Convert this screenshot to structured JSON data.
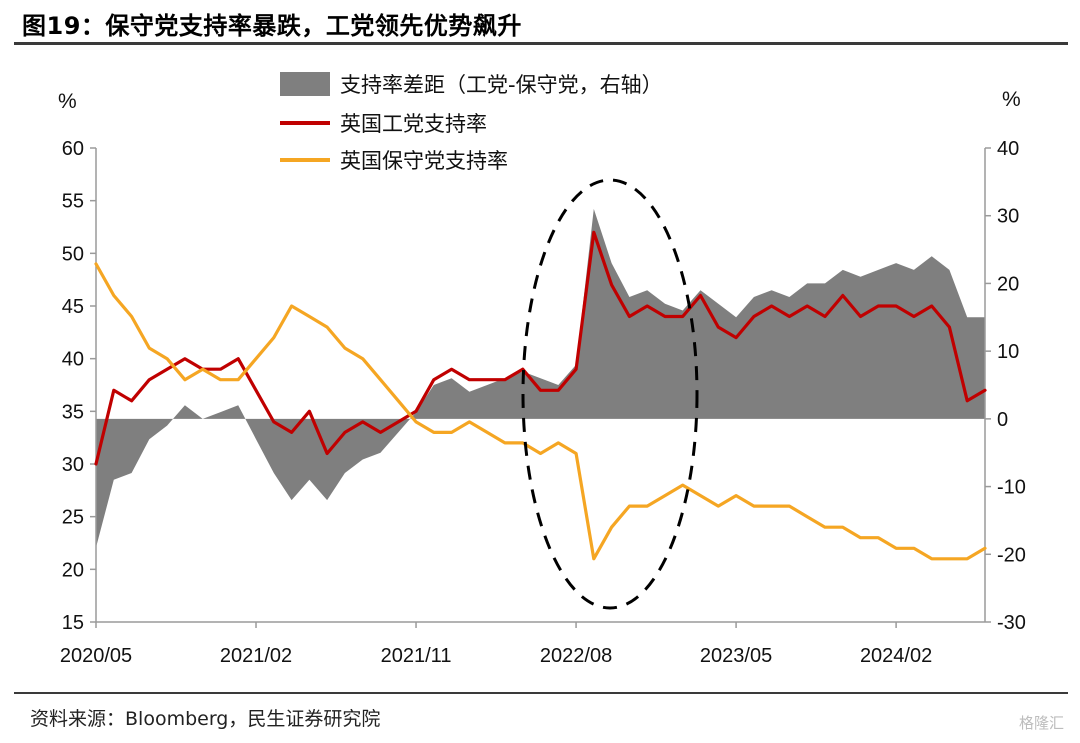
{
  "title": "图19：保守党支持率暴跌，工党领先优势飙升",
  "source": "资料来源：Bloomberg，民生证券研究院",
  "watermark": "格隆汇",
  "colors": {
    "labour": "#c00000",
    "conservative": "#f5a623",
    "gap": "#7f7f7f",
    "ellipse": "#000000"
  },
  "chart_data": {
    "type": "line",
    "left_unit": "%",
    "right_unit": "%",
    "left_axis": {
      "min": 15,
      "max": 60,
      "ticks": [
        15,
        20,
        25,
        30,
        35,
        40,
        45,
        50,
        55,
        60
      ]
    },
    "right_axis": {
      "min": -30,
      "max": 40,
      "ticks": [
        -30,
        -20,
        -10,
        0,
        10,
        20,
        30,
        40
      ]
    },
    "x_tick_labels": [
      "2020/05",
      "2021/02",
      "2021/11",
      "2022/08",
      "2023/05",
      "2024/02"
    ],
    "x_range": [
      "2020-05",
      "2024-07"
    ],
    "legend": [
      {
        "key": "gap",
        "label": "支持率差距（工党-保守党，右轴）"
      },
      {
        "key": "labour",
        "label": "英国工党支持率"
      },
      {
        "key": "conservative",
        "label": "英国保守党支持率"
      }
    ],
    "annotation": "dashed ellipse around 2022/08–2022/11",
    "series": [
      {
        "name": "英国工党支持率",
        "axis": "left",
        "x": [
          "2020-05",
          "2020-06",
          "2020-07",
          "2020-08",
          "2020-09",
          "2020-10",
          "2020-11",
          "2020-12",
          "2021-01",
          "2021-02",
          "2021-03",
          "2021-04",
          "2021-05",
          "2021-06",
          "2021-07",
          "2021-08",
          "2021-09",
          "2021-10",
          "2021-11",
          "2021-12",
          "2022-01",
          "2022-02",
          "2022-03",
          "2022-04",
          "2022-05",
          "2022-06",
          "2022-07",
          "2022-08",
          "2022-09",
          "2022-10",
          "2022-11",
          "2022-12",
          "2023-01",
          "2023-02",
          "2023-03",
          "2023-04",
          "2023-05",
          "2023-06",
          "2023-07",
          "2023-08",
          "2023-09",
          "2023-10",
          "2023-11",
          "2023-12",
          "2024-01",
          "2024-02",
          "2024-03",
          "2024-04",
          "2024-05",
          "2024-06",
          "2024-07"
        ],
        "values": [
          30,
          37,
          36,
          38,
          39,
          40,
          39,
          39,
          40,
          37,
          34,
          33,
          35,
          31,
          33,
          34,
          33,
          34,
          35,
          38,
          39,
          38,
          38,
          38,
          39,
          37,
          37,
          39,
          52,
          47,
          44,
          45,
          44,
          44,
          46,
          43,
          42,
          44,
          45,
          44,
          45,
          44,
          46,
          44,
          45,
          45,
          44,
          45,
          43,
          36,
          37
        ]
      },
      {
        "name": "英国保守党支持率",
        "axis": "left",
        "x": [
          "2020-05",
          "2020-06",
          "2020-07",
          "2020-08",
          "2020-09",
          "2020-10",
          "2020-11",
          "2020-12",
          "2021-01",
          "2021-02",
          "2021-03",
          "2021-04",
          "2021-05",
          "2021-06",
          "2021-07",
          "2021-08",
          "2021-09",
          "2021-10",
          "2021-11",
          "2021-12",
          "2022-01",
          "2022-02",
          "2022-03",
          "2022-04",
          "2022-05",
          "2022-06",
          "2022-07",
          "2022-08",
          "2022-09",
          "2022-10",
          "2022-11",
          "2022-12",
          "2023-01",
          "2023-02",
          "2023-03",
          "2023-04",
          "2023-05",
          "2023-06",
          "2023-07",
          "2023-08",
          "2023-09",
          "2023-10",
          "2023-11",
          "2023-12",
          "2024-01",
          "2024-02",
          "2024-03",
          "2024-04",
          "2024-05",
          "2024-06",
          "2024-07"
        ],
        "values": [
          49,
          46,
          44,
          41,
          40,
          38,
          39,
          38,
          38,
          40,
          42,
          45,
          44,
          43,
          41,
          40,
          38,
          36,
          34,
          33,
          33,
          34,
          33,
          32,
          32,
          31,
          32,
          31,
          21,
          24,
          26,
          26,
          27,
          28,
          27,
          26,
          27,
          26,
          26,
          26,
          25,
          24,
          24,
          23,
          23,
          22,
          22,
          21,
          21,
          21,
          22
        ]
      },
      {
        "name": "支持率差距（工党-保守党，右轴）",
        "axis": "right",
        "x": [
          "2020-05",
          "2020-06",
          "2020-07",
          "2020-08",
          "2020-09",
          "2020-10",
          "2020-11",
          "2020-12",
          "2021-01",
          "2021-02",
          "2021-03",
          "2021-04",
          "2021-05",
          "2021-06",
          "2021-07",
          "2021-08",
          "2021-09",
          "2021-10",
          "2021-11",
          "2021-12",
          "2022-01",
          "2022-02",
          "2022-03",
          "2022-04",
          "2022-05",
          "2022-06",
          "2022-07",
          "2022-08",
          "2022-09",
          "2022-10",
          "2022-11",
          "2022-12",
          "2023-01",
          "2023-02",
          "2023-03",
          "2023-04",
          "2023-05",
          "2023-06",
          "2023-07",
          "2023-08",
          "2023-09",
          "2023-10",
          "2023-11",
          "2023-12",
          "2024-01",
          "2024-02",
          "2024-03",
          "2024-04",
          "2024-05",
          "2024-06",
          "2024-07"
        ],
        "values": [
          -19,
          -9,
          -8,
          -3,
          -1,
          2,
          0,
          1,
          2,
          -3,
          -8,
          -12,
          -9,
          -12,
          -8,
          -6,
          -5,
          -2,
          1,
          5,
          6,
          4,
          5,
          6,
          7,
          6,
          5,
          8,
          31,
          23,
          18,
          19,
          17,
          16,
          19,
          17,
          15,
          18,
          19,
          18,
          20,
          20,
          22,
          21,
          22,
          23,
          22,
          24,
          22,
          15,
          15
        ]
      }
    ]
  }
}
